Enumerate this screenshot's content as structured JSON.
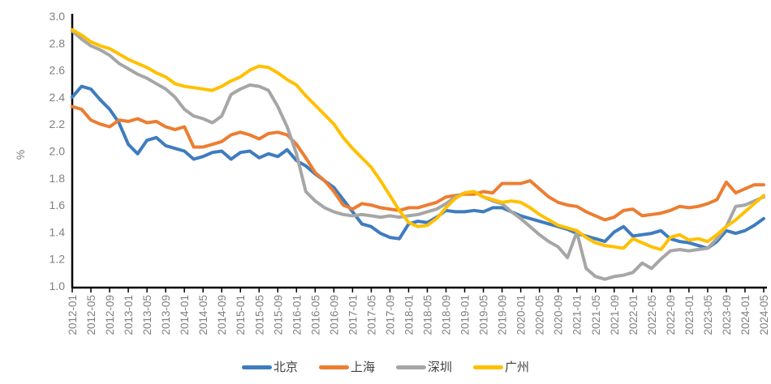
{
  "chart_data": {
    "type": "line",
    "title": "",
    "xlabel": "",
    "ylabel": "%",
    "ylim": [
      1.0,
      3.0
    ],
    "ytick_step": 0.2,
    "grid": false,
    "legend_position": "bottom",
    "x_start": "2012-01",
    "x_end": "2024-05",
    "x_total_months": 148,
    "x_interval_months": 2,
    "xtick_every_months": 4,
    "xtick_labels": [
      "2012-01",
      "2012-05",
      "2012-09",
      "2013-01",
      "2013-05",
      "2013-09",
      "2014-01",
      "2014-05",
      "2014-09",
      "2015-01",
      "2015-05",
      "2015-09",
      "2016-01",
      "2016-05",
      "2016-09",
      "2017-01",
      "2017-05",
      "2017-09",
      "2018-01",
      "2018-05",
      "2018-09",
      "2019-01",
      "2019-05",
      "2019-09",
      "2020-01",
      "2020-05",
      "2020-09",
      "2021-01",
      "2021-05",
      "2021-09",
      "2022-01",
      "2022-05",
      "2022-09",
      "2023-01",
      "2023-05",
      "2023-09",
      "2024-01",
      "2024-05"
    ],
    "axis_color": "#000000",
    "tick_label_color": "#808080",
    "series": [
      {
        "name": "北京",
        "color": "#3E7CBF",
        "values": [
          2.4,
          2.48,
          2.46,
          2.38,
          2.31,
          2.21,
          2.05,
          1.98,
          2.08,
          2.1,
          2.04,
          2.02,
          2.0,
          1.94,
          1.96,
          1.99,
          2.0,
          1.94,
          1.99,
          2.0,
          1.95,
          1.98,
          1.96,
          2.01,
          1.93,
          1.89,
          1.83,
          1.78,
          1.73,
          1.64,
          1.55,
          1.46,
          1.44,
          1.39,
          1.36,
          1.35,
          1.46,
          1.48,
          1.47,
          1.51,
          1.56,
          1.55,
          1.55,
          1.56,
          1.55,
          1.58,
          1.58,
          1.55,
          1.52,
          1.5,
          1.48,
          1.46,
          1.44,
          1.42,
          1.39,
          1.37,
          1.35,
          1.33,
          1.4,
          1.44,
          1.37,
          1.38,
          1.39,
          1.41,
          1.35,
          1.33,
          1.32,
          1.3,
          1.28,
          1.33,
          1.41,
          1.39,
          1.41,
          1.45,
          1.5
        ]
      },
      {
        "name": "上海",
        "color": "#ED7D31",
        "values": [
          2.33,
          2.31,
          2.23,
          2.2,
          2.18,
          2.23,
          2.22,
          2.24,
          2.21,
          2.22,
          2.18,
          2.16,
          2.18,
          2.03,
          2.03,
          2.05,
          2.07,
          2.12,
          2.14,
          2.12,
          2.09,
          2.13,
          2.14,
          2.12,
          2.05,
          1.95,
          1.84,
          1.78,
          1.7,
          1.6,
          1.57,
          1.61,
          1.6,
          1.58,
          1.57,
          1.56,
          1.58,
          1.58,
          1.6,
          1.62,
          1.66,
          1.67,
          1.68,
          1.68,
          1.7,
          1.69,
          1.76,
          1.76,
          1.76,
          1.78,
          1.72,
          1.66,
          1.62,
          1.6,
          1.59,
          1.55,
          1.52,
          1.49,
          1.51,
          1.56,
          1.57,
          1.52,
          1.53,
          1.54,
          1.56,
          1.59,
          1.58,
          1.59,
          1.61,
          1.64,
          1.77,
          1.69,
          1.72,
          1.75,
          1.75
        ]
      },
      {
        "name": "深圳",
        "color": "#A6A6A6",
        "values": [
          2.89,
          2.83,
          2.78,
          2.75,
          2.71,
          2.65,
          2.61,
          2.57,
          2.54,
          2.5,
          2.46,
          2.4,
          2.31,
          2.26,
          2.24,
          2.21,
          2.26,
          2.42,
          2.46,
          2.49,
          2.48,
          2.45,
          2.33,
          2.18,
          1.98,
          1.7,
          1.63,
          1.58,
          1.55,
          1.53,
          1.52,
          1.53,
          1.52,
          1.51,
          1.52,
          1.51,
          1.52,
          1.53,
          1.55,
          1.57,
          1.61,
          1.66,
          1.69,
          1.7,
          1.66,
          1.63,
          1.61,
          1.55,
          1.5,
          1.44,
          1.38,
          1.33,
          1.29,
          1.21,
          1.4,
          1.13,
          1.07,
          1.05,
          1.07,
          1.08,
          1.1,
          1.17,
          1.13,
          1.2,
          1.26,
          1.27,
          1.26,
          1.27,
          1.28,
          1.35,
          1.44,
          1.59,
          1.6,
          1.63,
          1.66
        ]
      },
      {
        "name": "广州",
        "color": "#FFC000",
        "values": [
          2.9,
          2.86,
          2.81,
          2.78,
          2.76,
          2.72,
          2.68,
          2.65,
          2.62,
          2.58,
          2.55,
          2.5,
          2.48,
          2.47,
          2.46,
          2.45,
          2.48,
          2.52,
          2.55,
          2.6,
          2.63,
          2.62,
          2.58,
          2.53,
          2.49,
          2.41,
          2.34,
          2.27,
          2.2,
          2.1,
          2.02,
          1.95,
          1.88,
          1.78,
          1.67,
          1.56,
          1.47,
          1.44,
          1.45,
          1.5,
          1.58,
          1.65,
          1.69,
          1.7,
          1.66,
          1.64,
          1.62,
          1.63,
          1.62,
          1.58,
          1.53,
          1.49,
          1.45,
          1.43,
          1.41,
          1.36,
          1.32,
          1.3,
          1.29,
          1.28,
          1.35,
          1.32,
          1.29,
          1.27,
          1.36,
          1.38,
          1.34,
          1.35,
          1.33,
          1.38,
          1.44,
          1.49,
          1.55,
          1.61,
          1.67
        ]
      }
    ]
  }
}
